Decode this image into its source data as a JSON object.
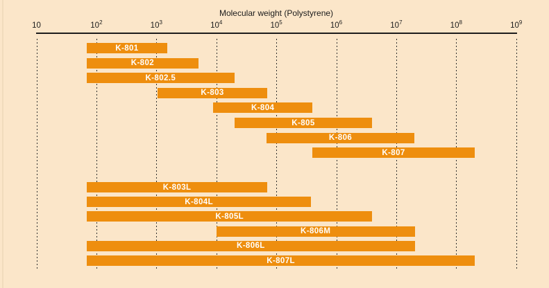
{
  "title": "Molecular weight (Polystyrene)",
  "colors": {
    "background": "#fbe6c9",
    "bar_orange": "#ee8e0e",
    "bar_label_text": "#ffffff",
    "axis_text": "#1b1b1b",
    "gridline": "#2e2e2e"
  },
  "chart_data": {
    "type": "bar",
    "subtype": "horizontal-range-bars",
    "title": "Molecular weight (Polystyrene)",
    "xlabel": "Molecular weight (Polystyrene)",
    "ylabel": "",
    "x_scale": "log10",
    "xlim": [
      10,
      1000000000
    ],
    "grid": "dashed-vertical-per-decade",
    "legend": "none",
    "axis": {
      "ticks": [
        {
          "text": "10",
          "sup": "",
          "log": 1
        },
        {
          "text": "10",
          "sup": "2",
          "log": 2
        },
        {
          "text": "10",
          "sup": "3",
          "log": 3
        },
        {
          "text": "10",
          "sup": "4",
          "log": 4
        },
        {
          "text": "10",
          "sup": "5",
          "log": 5
        },
        {
          "text": "10",
          "sup": "6",
          "log": 6
        },
        {
          "text": "10",
          "sup": "7",
          "log": 7
        },
        {
          "text": "10",
          "sup": "8",
          "log": 8
        },
        {
          "text": "10",
          "sup": "9",
          "log": 9
        }
      ]
    },
    "bars": [
      {
        "label": "K-801",
        "group": 1,
        "row": 0,
        "log_min": 1.84,
        "log_max": 3.18,
        "mw_range": "~7×10¹ – 1.5×10³"
      },
      {
        "label": "K-802",
        "group": 1,
        "row": 1,
        "log_min": 1.84,
        "log_max": 3.7,
        "mw_range": "~7×10¹ – 5×10³"
      },
      {
        "label": "K-802.5",
        "group": 1,
        "row": 2,
        "log_min": 1.84,
        "log_max": 4.3,
        "mw_range": "~7×10¹ – 2×10⁴"
      },
      {
        "label": "K-803",
        "group": 1,
        "row": 3,
        "log_min": 3.02,
        "log_max": 4.85,
        "mw_range": "1×10³ – 7×10⁴"
      },
      {
        "label": "K-804",
        "group": 1,
        "row": 4,
        "log_min": 3.95,
        "log_max": 5.6,
        "mw_range": "1×10⁴ – 4×10⁵"
      },
      {
        "label": "K-805",
        "group": 1,
        "row": 5,
        "log_min": 4.3,
        "log_max": 6.6,
        "mw_range": "2×10⁴ – 4×10⁶"
      },
      {
        "label": "K-806",
        "group": 1,
        "row": 6,
        "log_min": 4.84,
        "log_max": 7.3,
        "mw_range": "7×10⁴ – 2×10⁷"
      },
      {
        "label": "K-807",
        "group": 1,
        "row": 7,
        "log_min": 5.6,
        "log_max": 8.31,
        "mw_range": "4×10⁵ – 2×10⁸"
      },
      {
        "label": "K-803L",
        "group": 2,
        "row": 0,
        "log_min": 1.84,
        "log_max": 4.85,
        "mw_range": "~7×10¹ – 7×10⁴"
      },
      {
        "label": "K-804L",
        "group": 2,
        "row": 1,
        "log_min": 1.84,
        "log_max": 5.58,
        "mw_range": "~7×10¹ – 4×10⁵"
      },
      {
        "label": "K-805L",
        "group": 2,
        "row": 2,
        "log_min": 1.84,
        "log_max": 6.6,
        "mw_range": "~7×10¹ – 4×10⁶"
      },
      {
        "label": "K-806M",
        "group": 2,
        "row": 3,
        "log_min": 4.0,
        "log_max": 7.31,
        "mw_range": "1×10⁴ – 2×10⁷"
      },
      {
        "label": "K-806L",
        "group": 2,
        "row": 4,
        "log_min": 1.84,
        "log_max": 7.31,
        "mw_range": "~7×10¹ – 2×10⁷"
      },
      {
        "label": "K-807L",
        "group": 2,
        "row": 5,
        "log_min": 1.84,
        "log_max": 8.31,
        "mw_range": "~7×10¹ – 2×10⁸"
      }
    ]
  }
}
